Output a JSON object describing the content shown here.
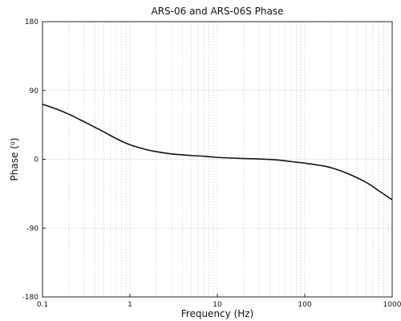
{
  "chart_data": {
    "type": "line",
    "title": "ARS-06 and ARS-06S Phase",
    "xlabel": "Frequency (Hz)",
    "ylabel": "Phase (o)",
    "x_scale": "log",
    "xlim": [
      0.1,
      1000
    ],
    "ylim": [
      -180,
      180
    ],
    "x_ticks": [
      0.1,
      1,
      10,
      100,
      1000
    ],
    "x_tick_labels": [
      "0.1",
      "1",
      "10",
      "100",
      "1000"
    ],
    "y_ticks": [
      180,
      90,
      0,
      -90,
      -180
    ],
    "y_tick_labels": [
      "180",
      "90",
      "0",
      "-90",
      "-180"
    ],
    "grid": true,
    "series": [
      {
        "x": [
          0.1,
          0.15,
          0.2,
          0.3,
          0.5,
          0.7,
          1,
          1.5,
          2,
          3,
          5,
          7,
          10,
          20,
          30,
          50,
          70,
          100,
          150,
          200,
          300,
          500,
          700,
          1000
        ],
        "y": [
          72,
          65,
          59,
          49,
          36,
          27,
          19,
          13,
          10,
          7,
          5,
          4,
          2.5,
          1,
          0.5,
          -1,
          -3,
          -5,
          -8,
          -11,
          -18,
          -30,
          -41,
          -53
        ]
      }
    ]
  }
}
